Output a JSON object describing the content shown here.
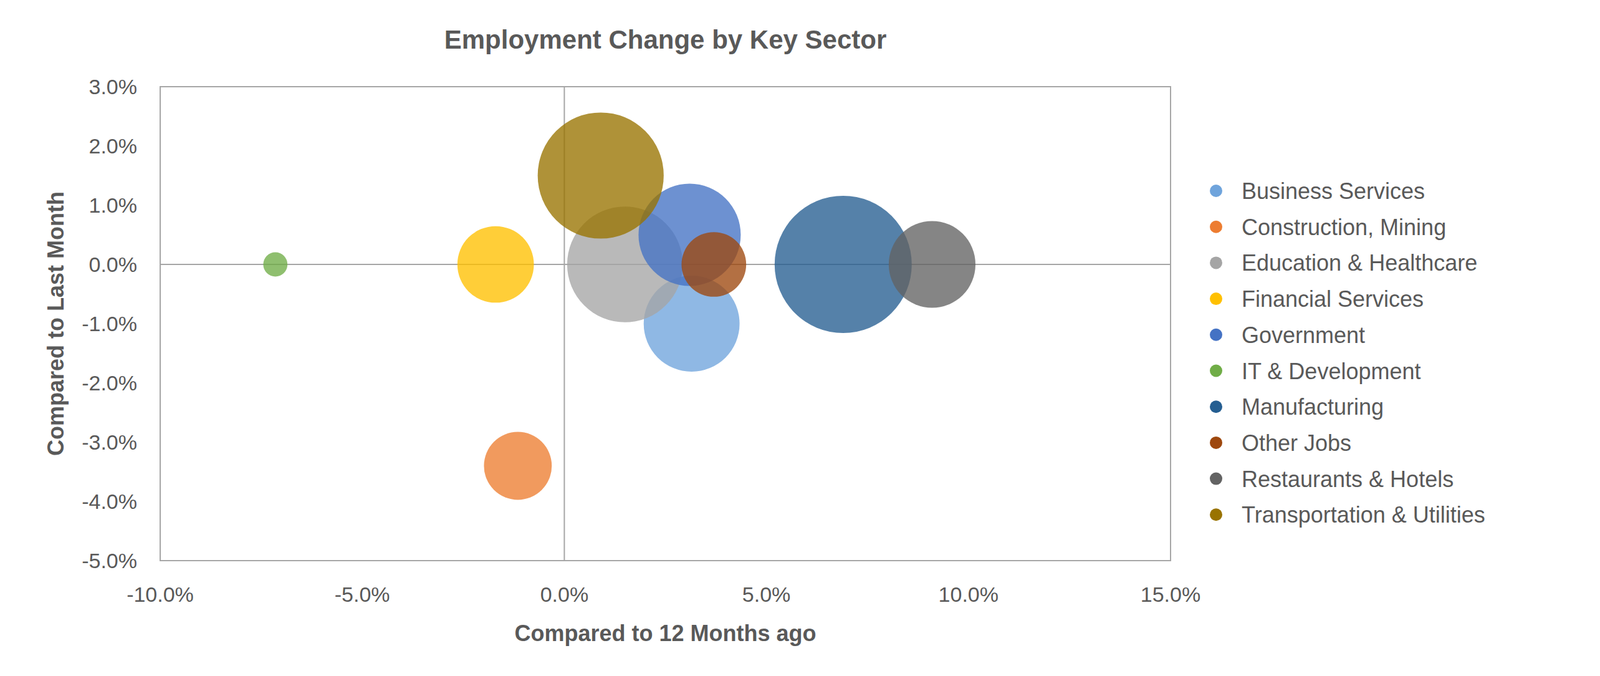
{
  "chart_data": {
    "type": "scatter",
    "title": "Employment Change by Key Sector",
    "x_label": "Compared to 12 Months ago",
    "y_label": "Compared to Last Month",
    "xlim": [
      -10,
      15
    ],
    "xticks": [
      {
        "value": -10,
        "label": "-10.0%"
      },
      {
        "value": -5,
        "label": "-5.0%"
      },
      {
        "value": 0,
        "label": "0.0%"
      },
      {
        "value": 5,
        "label": "5.0%"
      },
      {
        "value": 10,
        "label": "10.0%"
      },
      {
        "value": 15,
        "label": "15.0%"
      }
    ],
    "ylim": [
      -5,
      3
    ],
    "yticks": [
      {
        "value": -5,
        "label": "-5.0%"
      },
      {
        "value": -4,
        "label": "-4.0%"
      },
      {
        "value": -3,
        "label": "-3.0%"
      },
      {
        "value": -2,
        "label": "-2.0%"
      },
      {
        "value": -1,
        "label": "-1.0%"
      },
      {
        "value": 0,
        "label": "0.0%"
      },
      {
        "value": 1,
        "label": "1.0%"
      },
      {
        "value": 2,
        "label": "2.0%"
      },
      {
        "value": 3,
        "label": "3.0%"
      }
    ],
    "grid": false,
    "legend": "right",
    "series": [
      {
        "name": "Business Services",
        "color": "#6fa4dc",
        "x": [
          3.15
        ],
        "values": [
          -1.0
        ],
        "size": [
          22
        ]
      },
      {
        "name": "Construction, Mining",
        "color": "#ed7d31",
        "x": [
          -1.15
        ],
        "values": [
          -3.4
        ],
        "size": [
          11
        ]
      },
      {
        "name": "Education & Healthcare",
        "color": "#a5a5a5",
        "x": [
          1.5
        ],
        "values": [
          0.0
        ],
        "size": [
          32
        ]
      },
      {
        "name": "Financial Services",
        "color": "#ffc000",
        "x": [
          -1.7
        ],
        "values": [
          0.0
        ],
        "size": [
          14
        ]
      },
      {
        "name": "Government",
        "color": "#4472c4",
        "x": [
          3.1
        ],
        "values": [
          0.5
        ],
        "size": [
          25
        ]
      },
      {
        "name": "IT & Development",
        "color": "#70ad47",
        "x": [
          -7.15
        ],
        "values": [
          0.0
        ],
        "size": [
          1.4
        ]
      },
      {
        "name": "Manufacturing",
        "color": "#255e91",
        "x": [
          6.9
        ],
        "values": [
          0.0
        ],
        "size": [
          45
        ]
      },
      {
        "name": "Other Jobs",
        "color": "#9e480e",
        "x": [
          3.7
        ],
        "values": [
          0.0
        ],
        "size": [
          10
        ]
      },
      {
        "name": "Restaurants & Hotels",
        "color": "#636363",
        "x": [
          9.1
        ],
        "values": [
          0.0
        ],
        "size": [
          18
        ]
      },
      {
        "name": "Transportation & Utilities",
        "color": "#997300",
        "x": [
          0.9
        ],
        "values": [
          1.5
        ],
        "size": [
          38
        ]
      }
    ]
  }
}
